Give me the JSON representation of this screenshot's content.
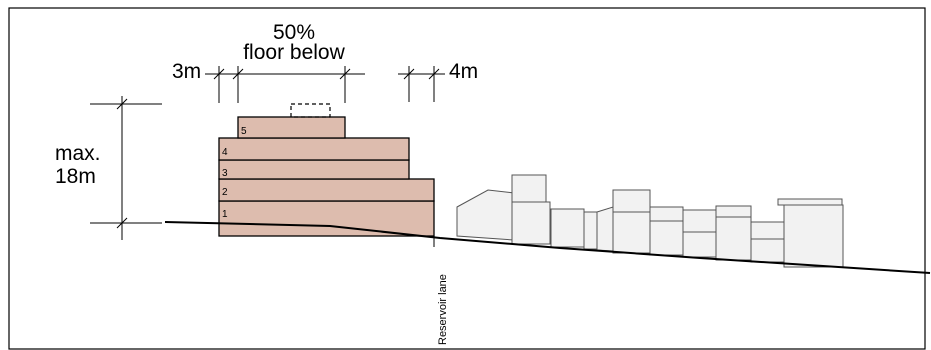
{
  "labels": {
    "setback_top_pct": "50%",
    "setback_top_text": "floor below",
    "setback_left": "3m",
    "setback_right": "4m",
    "height_line1": "max.",
    "height_line2": "18m",
    "lane": "Reservoir lane"
  },
  "floors": [
    "1",
    "2",
    "3",
    "4",
    "5"
  ],
  "colors": {
    "building_fill": "#ddbcae",
    "building_stroke": "#000000",
    "neighbour_fill": "#f2f2f2",
    "neighbour_stroke": "#555555",
    "frame": "#000000"
  }
}
